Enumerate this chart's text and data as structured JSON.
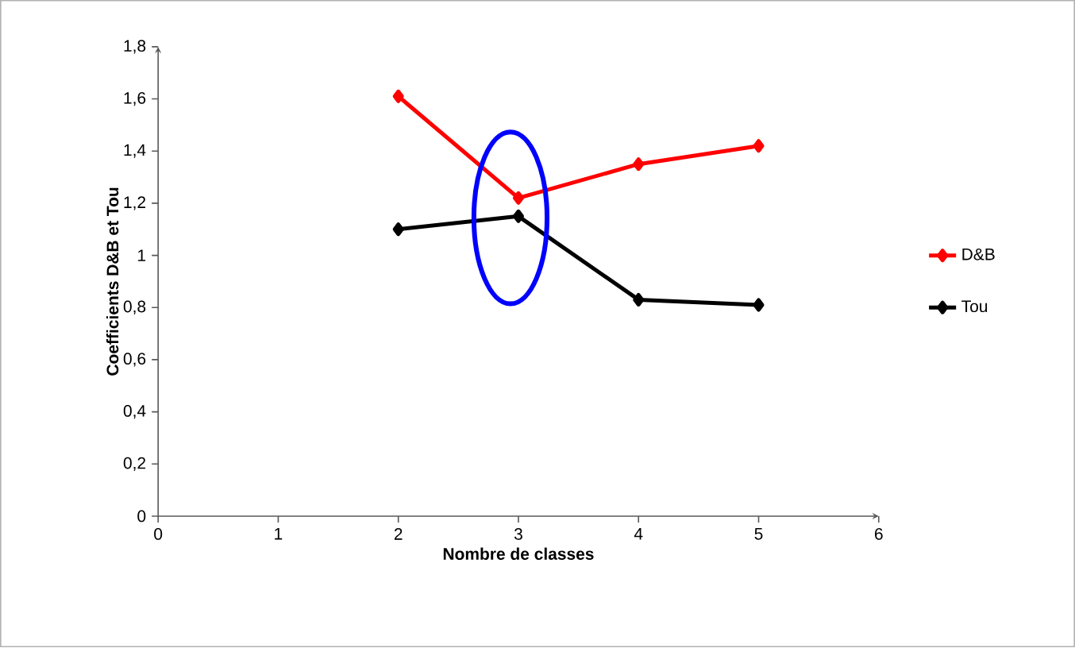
{
  "chart_data": {
    "type": "line",
    "xlabel": "Nombre de classes",
    "ylabel": "Coefficients D&B et Tou",
    "x": [
      2,
      3,
      4,
      5
    ],
    "series": [
      {
        "name": "D&B",
        "color": "#ff0000",
        "values": [
          1.61,
          1.22,
          1.35,
          1.42
        ]
      },
      {
        "name": "Tou",
        "color": "#000000",
        "values": [
          1.1,
          1.15,
          0.83,
          0.81
        ]
      }
    ],
    "xlim": [
      0,
      6
    ],
    "xticks": [
      0,
      1,
      2,
      3,
      4,
      5,
      6
    ],
    "ylim": [
      0,
      1.8
    ],
    "yticks": [
      0,
      {
        "value": 0.2,
        "label": "0,2"
      },
      {
        "value": 0.4,
        "label": "0,4"
      },
      {
        "value": 0.6,
        "label": "0,6"
      },
      {
        "value": 0.8,
        "label": "0,8"
      },
      1,
      {
        "value": 1.2,
        "label": "1,2"
      },
      {
        "value": 1.4,
        "label": "1,4"
      },
      {
        "value": 1.6,
        "label": "1,6"
      },
      {
        "value": 1.8,
        "label": "1,8"
      }
    ],
    "grid": false,
    "legend": "right",
    "marker": "diamond",
    "line_style": "solid"
  }
}
